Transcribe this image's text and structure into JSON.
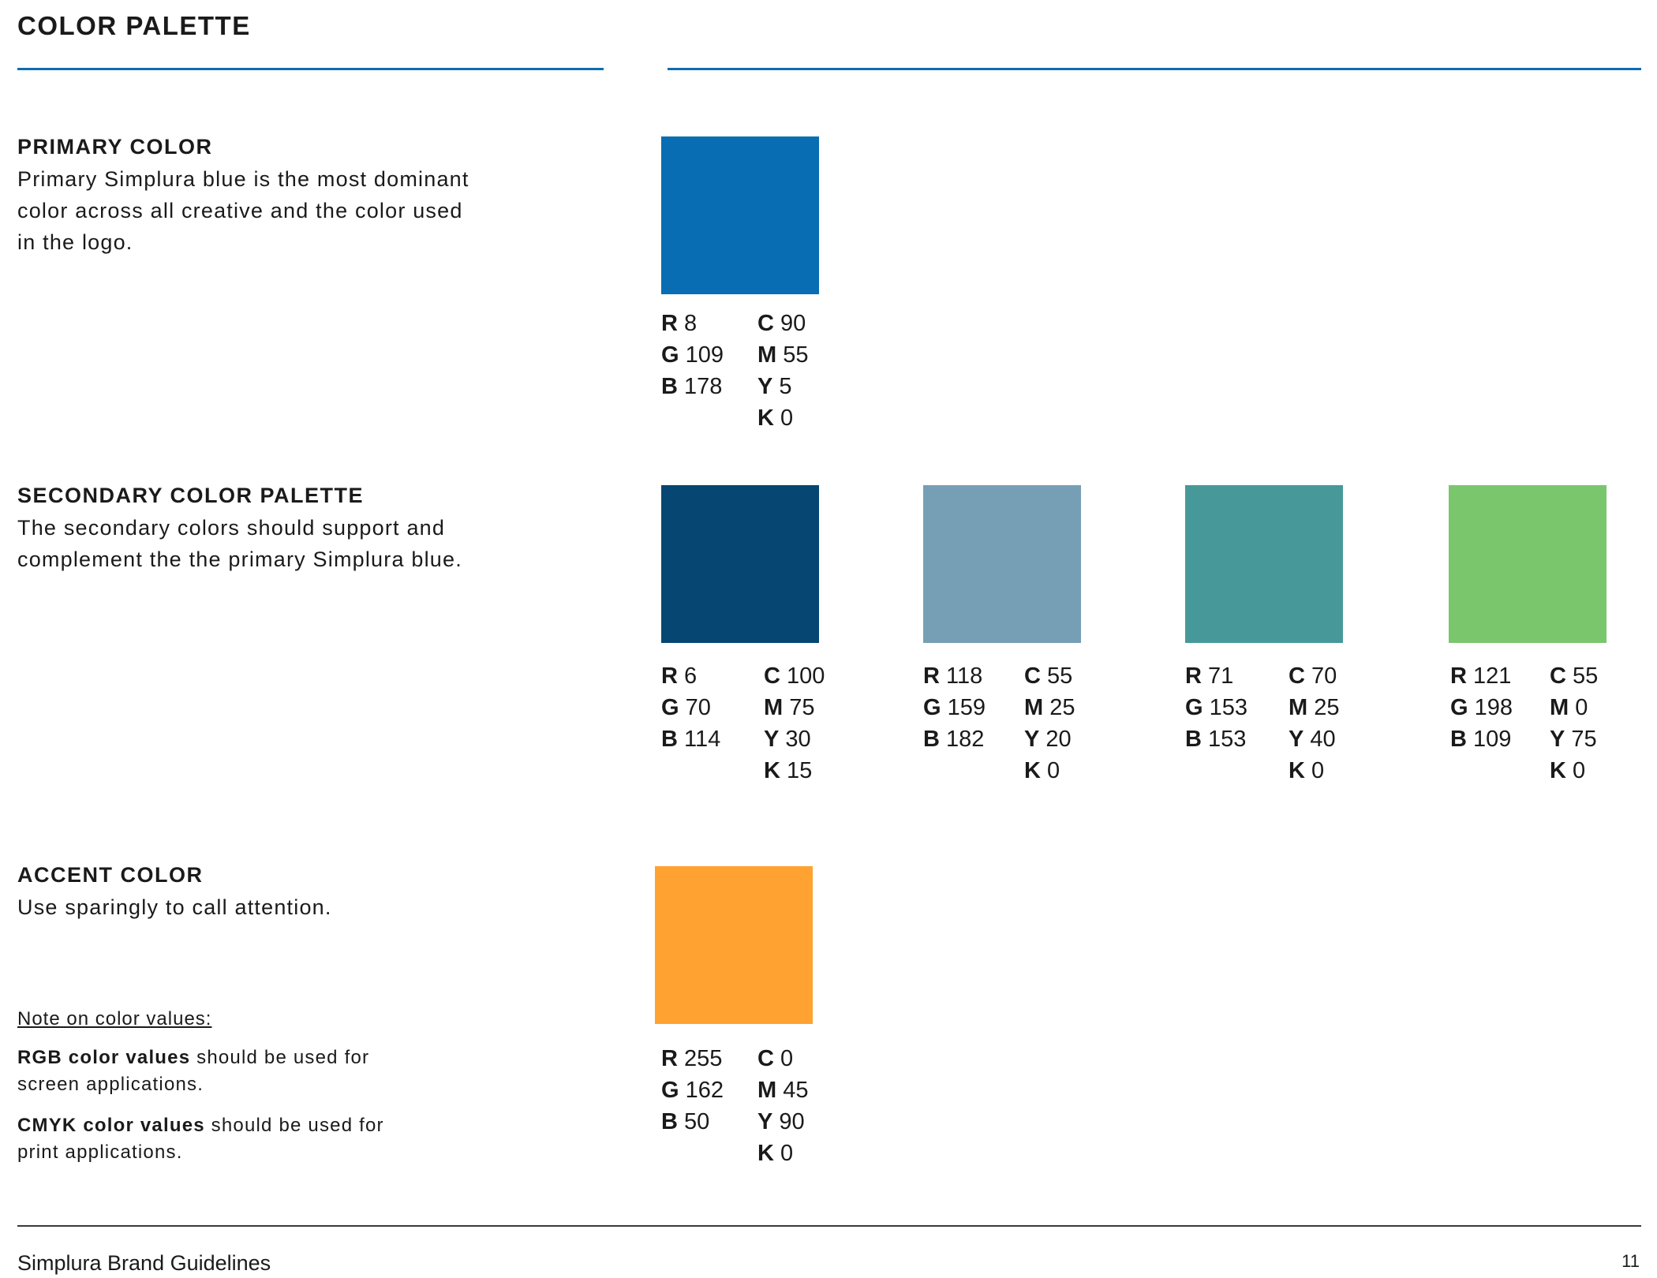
{
  "page_title": "COLOR PALETTE",
  "accent_rule_color": "#0c6db2",
  "primary": {
    "title": "PRIMARY COLOR",
    "description_lines": [
      "Primary Simplura blue is the most dominant",
      "color across all creative and the color used",
      "in the logo."
    ],
    "swatch": {
      "hex": "#086db2",
      "rgb": {
        "r_label": "R",
        "r": "8",
        "g_label": "G",
        "g": "109",
        "b_label": "B",
        "b": "178"
      },
      "cmyk": {
        "c_label": "C",
        "c": "90",
        "m_label": "M",
        "m": "55",
        "y_label": "Y",
        "y": "5",
        "k_label": "K",
        "k": "0"
      }
    }
  },
  "secondary": {
    "title": "SECONDARY COLOR PALETTE",
    "description_lines": [
      "The secondary colors should support and",
      "complement the the primary Simplura blue."
    ],
    "swatches": [
      {
        "hex": "#064672",
        "rgb": {
          "r_label": "R",
          "r": "6",
          "g_label": "G",
          "g": "70",
          "b_label": "B",
          "b": "114"
        },
        "cmyk": {
          "c_label": "C",
          "c": "100",
          "m_label": "M",
          "m": "75",
          "y_label": "Y",
          "y": "30",
          "k_label": "K",
          "k": "15"
        }
      },
      {
        "hex": "#769fb6",
        "rgb": {
          "r_label": "R",
          "r": "118",
          "g_label": "G",
          "g": "159",
          "b_label": "B",
          "b": "182"
        },
        "cmyk": {
          "c_label": "C",
          "c": "55",
          "m_label": "M",
          "m": "25",
          "y_label": "Y",
          "y": "20",
          "k_label": "K",
          "k": "0"
        }
      },
      {
        "hex": "#479999",
        "rgb": {
          "r_label": "R",
          "r": "71",
          "g_label": "G",
          "g": "153",
          "b_label": "B",
          "b": "153"
        },
        "cmyk": {
          "c_label": "C",
          "c": "70",
          "m_label": "M",
          "m": "25",
          "y_label": "Y",
          "y": "40",
          "k_label": "K",
          "k": "0"
        }
      },
      {
        "hex": "#79c66d",
        "rgb": {
          "r_label": "R",
          "r": "121",
          "g_label": "G",
          "g": "198",
          "b_label": "B",
          "b": "109"
        },
        "cmyk": {
          "c_label": "C",
          "c": "55",
          "m_label": "M",
          "m": "0",
          "y_label": "Y",
          "y": "75",
          "k_label": "K",
          "k": "0"
        }
      }
    ]
  },
  "accent": {
    "title": "ACCENT COLOR",
    "description_lines": [
      "Use sparingly to call attention."
    ],
    "swatch": {
      "hex": "#ffa232",
      "rgb": {
        "r_label": "R",
        "r": "255",
        "g_label": "G",
        "g": "162",
        "b_label": "B",
        "b": "50"
      },
      "cmyk": {
        "c_label": "C",
        "c": "0",
        "m_label": "M",
        "m": "45",
        "y_label": "Y",
        "y": "90",
        "k_label": "K",
        "k": "0"
      }
    }
  },
  "note": {
    "title": "Note on color values:",
    "rgb_bold": "RGB color values",
    "rgb_rest_1": " should be used for",
    "rgb_rest_2": "screen applications.",
    "cmyk_bold": "CMYK color values",
    "cmyk_rest_1": " should be used for",
    "cmyk_rest_2": "print applications."
  },
  "footer": {
    "left": "Simplura Brand Guidelines",
    "page_number": "11"
  }
}
